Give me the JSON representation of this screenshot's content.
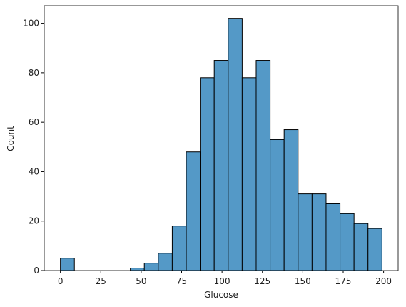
{
  "chart_data": {
    "type": "histogram",
    "xlabel": "Glucose",
    "ylabel": "Count",
    "bins": [
      0,
      8.652,
      17.304,
      25.957,
      34.609,
      43.261,
      51.913,
      60.565,
      69.217,
      77.87,
      86.522,
      95.174,
      103.826,
      112.478,
      121.13,
      129.783,
      138.435,
      147.087,
      155.739,
      164.391,
      173.043,
      181.696,
      190.348,
      199
    ],
    "values": [
      5,
      0,
      0,
      0,
      0,
      1,
      3,
      7,
      18,
      48,
      78,
      85,
      102,
      78,
      85,
      53,
      57,
      31,
      31,
      27,
      23,
      19,
      17
    ],
    "color": "#5499c7",
    "xlim": [
      -10,
      209
    ],
    "xticks": [
      0,
      25,
      50,
      75,
      100,
      125,
      150,
      175,
      200
    ],
    "ylim": [
      0,
      107.1
    ],
    "yticks": [
      0,
      20,
      40,
      60,
      80,
      100
    ]
  }
}
